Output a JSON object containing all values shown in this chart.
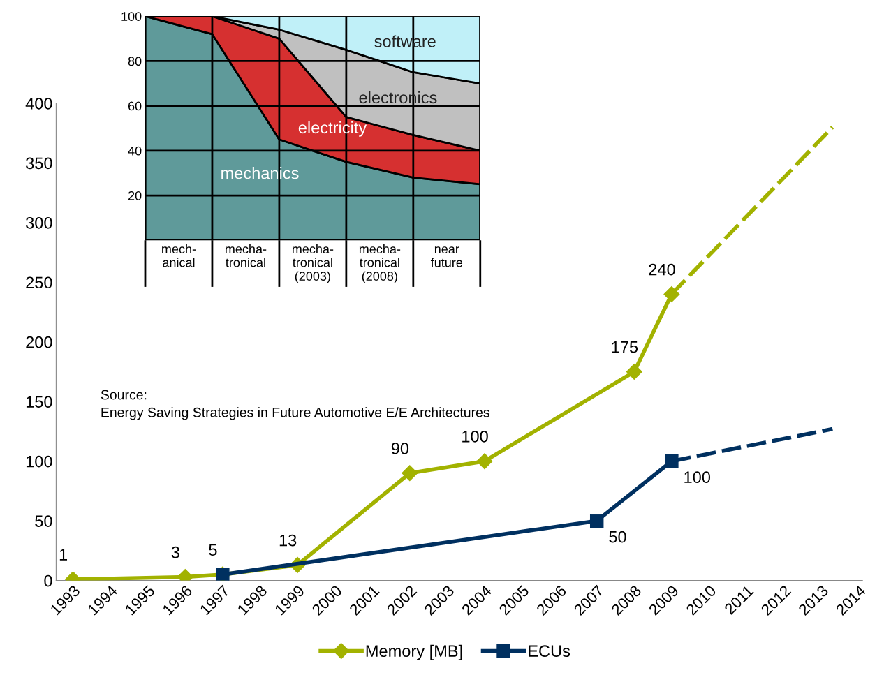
{
  "chart_data": [
    {
      "type": "line",
      "x": [
        1993,
        1996,
        1997,
        1999,
        2002,
        2004,
        2008,
        2009
      ],
      "xlim": [
        1992.55,
        2014.1
      ],
      "ylim": [
        0,
        400
      ],
      "yticks": [
        0,
        50,
        100,
        150,
        200,
        250,
        300,
        350,
        400
      ],
      "xticks": [
        1993,
        1994,
        1995,
        1996,
        1997,
        1998,
        1999,
        2000,
        2001,
        2002,
        2003,
        2004,
        2005,
        2006,
        2007,
        2008,
        2009,
        2010,
        2011,
        2012,
        2013,
        2014
      ],
      "grid": false,
      "legend": "bottom",
      "series": [
        {
          "name": "Memory [MB]",
          "color": "#a2b200",
          "marker": "diamond",
          "line_style": "solid",
          "values": [
            1,
            3,
            5,
            13,
            90,
            100,
            175,
            240
          ],
          "value_labels": [
            "1",
            "3",
            "5",
            "13",
            "90",
            "100",
            "175",
            "240"
          ]
        },
        {
          "name": "ECUs",
          "color": "#003060",
          "marker": "square",
          "line_style": "solid",
          "x": [
            1997,
            2007,
            2009
          ],
          "values": [
            5,
            50,
            100
          ],
          "value_labels": [
            null,
            "50",
            "100"
          ]
        },
        {
          "color": "#a2b200",
          "marker": "none",
          "line_style": "dashed",
          "x": [
            2009,
            2013.3
          ],
          "values": [
            240,
            380
          ]
        },
        {
          "color": "#003060",
          "marker": "none",
          "line_style": "dashed",
          "x": [
            2009,
            2013.3
          ],
          "values": [
            100,
            127
          ]
        }
      ],
      "annotations": [
        "Source:\nEnergy Saving Strategies in Future Automotive E/E Architectures"
      ]
    },
    {
      "type": "area",
      "stacked": true,
      "categories": [
        null,
        "mech-\nanical",
        null,
        "mecha-\ntronical",
        null,
        "mecha-\ntronical\n(2003)",
        null,
        "mecha-\ntronical\n(2008)",
        null,
        "near\nfuture",
        null
      ],
      "ylim": [
        0,
        100
      ],
      "yticks": [
        20,
        40,
        60,
        80,
        100
      ],
      "grid": true,
      "series": [
        {
          "name": "mechanics",
          "color": "#5f9a9a",
          "values": [
            100,
            96,
            92,
            68.5,
            45,
            40,
            35,
            31.5,
            28,
            26.5,
            25
          ]
        },
        {
          "name": "electricity",
          "color": "#d63030",
          "values": [
            0,
            4,
            8,
            26.5,
            45,
            32.5,
            20,
            19.5,
            19,
            17,
            15
          ]
        },
        {
          "name": "electronics",
          "color": "#c0c0c0",
          "values": [
            0,
            0,
            0,
            2,
            4,
            17,
            30,
            29,
            28,
            29,
            30
          ]
        },
        {
          "name": "software",
          "color": "#c0f0f8",
          "values": [
            0,
            0,
            0,
            3,
            6,
            10.5,
            15,
            20,
            25,
            27.5,
            30
          ]
        }
      ]
    }
  ]
}
